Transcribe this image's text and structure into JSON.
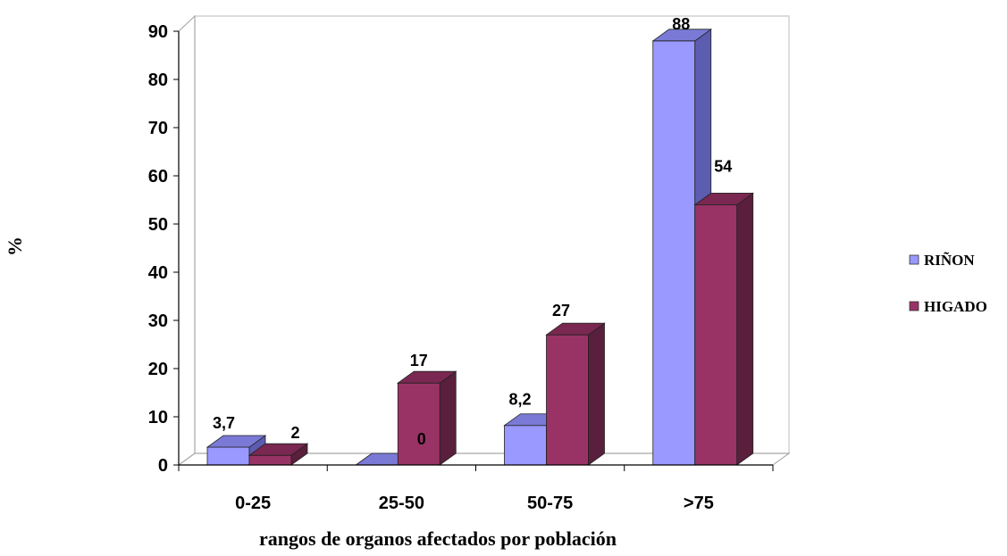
{
  "chart_data": {
    "type": "bar",
    "style": "3d-clustered-column",
    "categories": [
      "0-25",
      "25-50",
      "50-75",
      ">75"
    ],
    "series": [
      {
        "name": "RIÑON",
        "values": [
          3.7,
          0,
          8.2,
          88
        ],
        "labels": [
          "3,7",
          "0",
          "8,2",
          "88"
        ],
        "color": "#9999ff",
        "side_color": "#5c5cb0",
        "top_color": "#7a7ad6"
      },
      {
        "name": "HIGADO",
        "values": [
          2,
          17,
          27,
          54
        ],
        "labels": [
          "2",
          "17",
          "27",
          "54"
        ],
        "color": "#993366",
        "side_color": "#5a1f3d",
        "top_color": "#7a2851"
      }
    ],
    "ylim": [
      0,
      90
    ],
    "yticks": [
      "0",
      "10",
      "20",
      "30",
      "40",
      "50",
      "60",
      "70",
      "80",
      "90"
    ],
    "xlabel": "rangos de organos afectados por población",
    "ylabel": "%",
    "legend_position": "right",
    "grid": false
  }
}
